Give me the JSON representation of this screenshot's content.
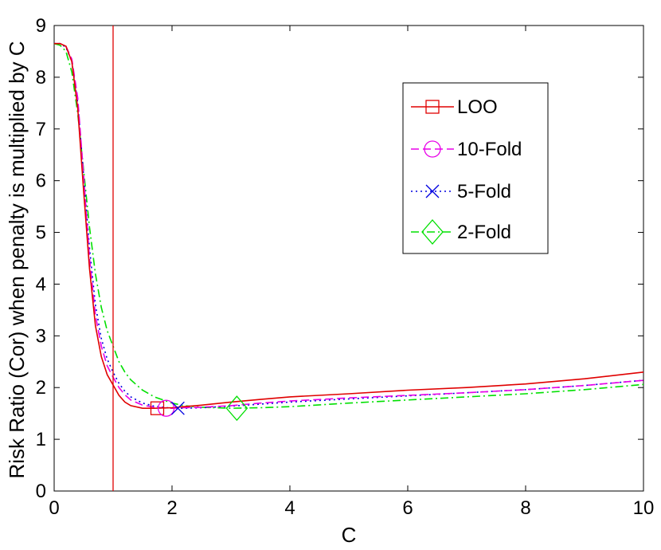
{
  "chart_data": {
    "type": "line",
    "xlabel": "C",
    "ylabel": "Risk Ratio (Cor) when penalty is multiplied by C",
    "xlim": [
      0,
      10
    ],
    "ylim": [
      0,
      9
    ],
    "xticks": [
      "0",
      "2",
      "4",
      "6",
      "8",
      "10"
    ],
    "yticks": [
      "0",
      "1",
      "2",
      "3",
      "4",
      "5",
      "6",
      "7",
      "8",
      "9"
    ],
    "grid": false,
    "legend_position": "top-right",
    "reference_line": {
      "x": 1,
      "color": "#e00000"
    },
    "series": [
      {
        "name": "LOO",
        "color": "#e00000",
        "dash": "",
        "marker": "square",
        "marker_at": {
          "x": 1.75,
          "y": 1.6
        },
        "x": [
          0,
          0.1,
          0.2,
          0.3,
          0.4,
          0.5,
          0.6,
          0.7,
          0.8,
          0.9,
          1.0,
          1.1,
          1.2,
          1.3,
          1.5,
          1.7,
          2.0,
          2.2,
          2.5,
          3,
          3.5,
          4,
          5,
          6,
          7,
          8,
          9,
          10
        ],
        "y": [
          8.65,
          8.65,
          8.6,
          8.3,
          7.4,
          5.8,
          4.3,
          3.2,
          2.6,
          2.25,
          2.05,
          1.85,
          1.72,
          1.65,
          1.6,
          1.6,
          1.61,
          1.63,
          1.66,
          1.72,
          1.77,
          1.82,
          1.88,
          1.95,
          2.0,
          2.07,
          2.17,
          2.3
        ]
      },
      {
        "name": "10-Fold",
        "color": "#e800e8",
        "dash": "10,5",
        "marker": "circle",
        "marker_at": {
          "x": 1.9,
          "y": 1.6
        },
        "x": [
          0,
          0.1,
          0.2,
          0.3,
          0.4,
          0.5,
          0.6,
          0.7,
          0.8,
          0.9,
          1.0,
          1.1,
          1.2,
          1.3,
          1.5,
          1.7,
          2.0,
          2.2,
          2.5,
          3,
          3.5,
          4,
          5,
          6,
          7,
          8,
          9,
          10
        ],
        "y": [
          8.65,
          8.65,
          8.6,
          8.35,
          7.6,
          6.1,
          4.5,
          3.4,
          2.8,
          2.42,
          2.2,
          2.0,
          1.86,
          1.76,
          1.66,
          1.62,
          1.6,
          1.61,
          1.62,
          1.65,
          1.7,
          1.74,
          1.8,
          1.85,
          1.9,
          1.96,
          2.04,
          2.14
        ]
      },
      {
        "name": "5-Fold",
        "color": "#0000e0",
        "dash": "2,4",
        "marker": "x",
        "marker_at": {
          "x": 2.1,
          "y": 1.6
        },
        "x": [
          0,
          0.1,
          0.2,
          0.3,
          0.4,
          0.5,
          0.6,
          0.7,
          0.8,
          0.9,
          1.0,
          1.1,
          1.2,
          1.3,
          1.5,
          1.7,
          2.0,
          2.2,
          2.5,
          3,
          3.5,
          4,
          5,
          6,
          7,
          8,
          9,
          10
        ],
        "y": [
          8.65,
          8.65,
          8.58,
          8.3,
          7.5,
          6.1,
          4.7,
          3.6,
          2.95,
          2.55,
          2.3,
          2.08,
          1.93,
          1.82,
          1.7,
          1.64,
          1.6,
          1.6,
          1.61,
          1.64,
          1.68,
          1.72,
          1.78,
          1.84,
          1.9,
          1.96,
          2.04,
          2.14
        ]
      },
      {
        "name": "2-Fold",
        "color": "#00e000",
        "dash": "10,4,2,4",
        "marker": "diamond",
        "marker_at": {
          "x": 3.1,
          "y": 1.6
        },
        "x": [
          0,
          0.1,
          0.2,
          0.3,
          0.4,
          0.5,
          0.6,
          0.7,
          0.8,
          0.9,
          1.0,
          1.1,
          1.2,
          1.3,
          1.5,
          1.7,
          2.0,
          2.2,
          2.5,
          3,
          3.5,
          4,
          5,
          6,
          7,
          8,
          9,
          10
        ],
        "y": [
          8.65,
          8.62,
          8.5,
          8.1,
          7.3,
          6.2,
          5.1,
          4.2,
          3.55,
          3.1,
          2.8,
          2.5,
          2.3,
          2.15,
          1.95,
          1.82,
          1.7,
          1.65,
          1.62,
          1.6,
          1.61,
          1.63,
          1.7,
          1.76,
          1.82,
          1.88,
          1.96,
          2.06
        ]
      }
    ]
  }
}
